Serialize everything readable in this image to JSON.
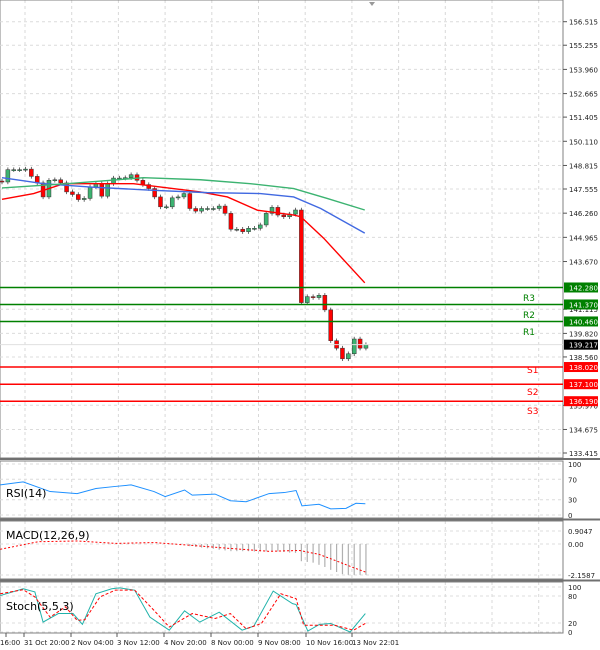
{
  "chart_data": [
    {
      "type": "candlestick",
      "panel": "main",
      "y_ticks": [
        "156.515",
        "155.255",
        "153.960",
        "152.665",
        "151.405",
        "150.110",
        "148.815",
        "147.555",
        "146.260",
        "144.965",
        "143.670",
        "141.115",
        "139.820",
        "138.560",
        "135.970",
        "134.675",
        "133.415"
      ],
      "ylim": [
        133.415,
        156.515
      ],
      "grid": true,
      "closes": [
        147.93,
        148.59,
        148.59,
        148.59,
        148.62,
        148.23,
        147.88,
        147.13,
        148.02,
        148.05,
        147.88,
        147.4,
        147.26,
        146.99,
        147.05,
        147.67,
        147.84,
        147.17,
        147.84,
        148.14,
        148.14,
        148.16,
        148.32,
        148.02,
        147.79,
        147.58,
        147.13,
        146.6,
        146.6,
        147.08,
        147.13,
        147.31,
        146.51,
        146.37,
        146.51,
        146.51,
        146.51,
        146.64,
        146.25,
        145.4,
        145.4,
        145.27,
        145.45,
        145.45,
        145.63,
        146.25,
        146.57,
        146.16,
        146.07,
        146.21,
        146.43,
        141.47,
        141.79,
        141.74,
        141.86,
        141.08,
        139.43,
        139.03,
        138.46,
        138.73,
        139.52,
        139.03,
        139.217
      ],
      "current_price": "139.217",
      "moving_averages": [
        {
          "color": "#ff0000",
          "points": [
            [
              1,
              147.0
            ],
            [
              6.4,
              147.31
            ],
            [
              11.5,
              147.84
            ],
            [
              23.4,
              147.84
            ],
            [
              34.8,
              147.4
            ],
            [
              39.4,
              147.13
            ],
            [
              44.5,
              146.42
            ],
            [
              50.7,
              146.16
            ],
            [
              51.9,
              146.07
            ],
            [
              55.8,
              144.92
            ],
            [
              62.8,
              142.53
            ]
          ]
        },
        {
          "color": "#4169e1",
          "points": [
            [
              1,
              148.16
            ],
            [
              8.1,
              147.84
            ],
            [
              16.1,
              147.66
            ],
            [
              26.3,
              147.49
            ],
            [
              35.9,
              147.36
            ],
            [
              45,
              147.31
            ],
            [
              50.7,
              147.13
            ],
            [
              55.3,
              146.51
            ],
            [
              62.8,
              145.19
            ]
          ]
        },
        {
          "color": "#3cb371",
          "points": [
            [
              1,
              147.61
            ],
            [
              12.1,
              147.84
            ],
            [
              25.1,
              148.16
            ],
            [
              34.8,
              148.05
            ],
            [
              43.3,
              147.84
            ],
            [
              50.7,
              147.58
            ],
            [
              56.4,
              147.05
            ],
            [
              62.8,
              146.43
            ]
          ]
        }
      ],
      "levels": [
        {
          "label": "",
          "value": "142.280",
          "color": "#008000"
        },
        {
          "label": "R3",
          "value": "141.370",
          "color": "#008000"
        },
        {
          "label": "R2",
          "value": "140.460",
          "color": "#008000"
        },
        {
          "label": "R1",
          "value": "",
          "color": "#008000"
        },
        {
          "label": "S1",
          "value": "138.020",
          "color": "#ff0000"
        },
        {
          "label": "S2",
          "value": "137.100",
          "color": "#ff0000"
        },
        {
          "label": "S3",
          "value": "136.190",
          "color": "#ff0000"
        }
      ],
      "colors": {
        "bull": "#3cb371",
        "bear": "#ff0000"
      }
    },
    {
      "type": "line",
      "panel": "rsi",
      "title": "RSI(14)",
      "y_ticks": [
        "100",
        "70",
        "30",
        "0"
      ],
      "ylim": [
        0,
        100
      ],
      "series": [
        {
          "color": "#1e90ff",
          "points": [
            [
              0.7,
              59
            ],
            [
              4.6,
              65
            ],
            [
              9.2,
              46
            ],
            [
              13.8,
              42
            ],
            [
              17,
              52
            ],
            [
              20.3,
              56
            ],
            [
              23,
              59
            ],
            [
              26.9,
              46
            ],
            [
              28.8,
              36
            ],
            [
              32.1,
              49
            ],
            [
              33.4,
              39
            ],
            [
              37.3,
              41
            ],
            [
              39.9,
              28
            ],
            [
              42.6,
              26
            ],
            [
              46.5,
              42
            ],
            [
              49.1,
              44
            ],
            [
              51.1,
              48
            ],
            [
              52.1,
              18
            ],
            [
              55,
              21
            ],
            [
              57,
              12
            ],
            [
              59.6,
              13
            ],
            [
              61.3,
              23
            ],
            [
              62.9,
              22
            ]
          ]
        }
      ]
    },
    {
      "type": "bar+line",
      "panel": "macd",
      "title": "MACD(12,26,9)",
      "y_ticks": [
        "0.9047",
        "0.00",
        "-2.1587"
      ],
      "ylim": [
        -2.1587,
        0.9047
      ],
      "histogram": {
        "start_index": 33,
        "values": [
          -0.15,
          -0.2,
          -0.25,
          -0.3,
          -0.33,
          -0.4,
          -0.45,
          -0.5,
          -0.5,
          -0.5,
          -0.5,
          -0.52,
          -0.52,
          -0.52,
          -0.52,
          -0.52,
          -0.55,
          -0.6,
          -0.62,
          -1.2,
          -1.25,
          -1.3,
          -1.45,
          -1.6,
          -1.8,
          -1.95,
          -2.1,
          -2.15,
          -2.15,
          -2.15,
          -2.15
        ]
      },
      "signal": {
        "color": "#ff0000",
        "points": [
          [
            0.7,
            -0.37
          ],
          [
            7.2,
            0.16
          ],
          [
            13.8,
            0.21
          ],
          [
            20.3,
            0.04
          ],
          [
            26.9,
            0.1
          ],
          [
            33.4,
            -0.1
          ],
          [
            39.9,
            -0.31
          ],
          [
            46.5,
            -0.51
          ],
          [
            51.7,
            -0.45
          ],
          [
            55,
            -0.72
          ],
          [
            58.3,
            -1.23
          ],
          [
            60.9,
            -1.65
          ],
          [
            62.9,
            -1.95
          ]
        ]
      }
    },
    {
      "type": "line",
      "panel": "stoch",
      "title": "Stoch(5,5,3)",
      "y_ticks": [
        "100",
        "80",
        "20",
        "0"
      ],
      "ylim": [
        0,
        100
      ],
      "series": [
        {
          "color": "#20b2aa",
          "points": [
            [
              0.7,
              81
            ],
            [
              4.6,
              96
            ],
            [
              6.6,
              89
            ],
            [
              8,
              22
            ],
            [
              10.6,
              41
            ],
            [
              13.1,
              41
            ],
            [
              14.7,
              17
            ],
            [
              17,
              85
            ],
            [
              19.7,
              96
            ],
            [
              21,
              98
            ],
            [
              23.6,
              93
            ],
            [
              26.2,
              33
            ],
            [
              29.5,
              4
            ],
            [
              32.1,
              47
            ],
            [
              34.7,
              22
            ],
            [
              38,
              44
            ],
            [
              41.9,
              4
            ],
            [
              43.9,
              13
            ],
            [
              47.2,
              91
            ],
            [
              50.5,
              63
            ],
            [
              51.1,
              61
            ],
            [
              53.1,
              2
            ],
            [
              55.1,
              17
            ],
            [
              57,
              19
            ],
            [
              60.3,
              0
            ],
            [
              62.9,
              41
            ]
          ]
        },
        {
          "color": "#ff0000",
          "dashed": true,
          "points": [
            [
              0.7,
              85
            ],
            [
              4.6,
              94
            ],
            [
              6.6,
              78
            ],
            [
              9.2,
              33
            ],
            [
              11.8,
              56
            ],
            [
              13.8,
              26
            ],
            [
              15.1,
              27
            ],
            [
              17.7,
              78
            ],
            [
              20.3,
              93
            ],
            [
              23.6,
              93
            ],
            [
              26.9,
              48
            ],
            [
              29.5,
              11
            ],
            [
              33.4,
              41
            ],
            [
              37.3,
              30
            ],
            [
              39.9,
              41
            ],
            [
              42.6,
              7
            ],
            [
              45.2,
              19
            ],
            [
              48.5,
              85
            ],
            [
              51.1,
              74
            ],
            [
              52.4,
              15
            ],
            [
              55.1,
              15
            ],
            [
              57.7,
              15
            ],
            [
              60.9,
              4
            ],
            [
              62.9,
              19
            ]
          ]
        }
      ]
    }
  ],
  "x_ticks": [
    "16:00",
    "31 Oct 20:00",
    "2 Nov 04:00",
    "3 Nov 12:00",
    "4 Nov 20:00",
    "8 Nov 00:00",
    "9 Nov 08:00",
    "10 Nov 16:00",
    "13 Nov 22:01"
  ]
}
